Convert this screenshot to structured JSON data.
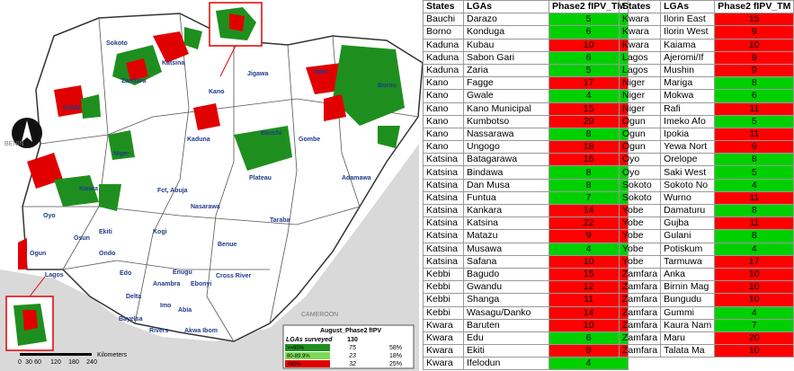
{
  "map": {
    "state_labels": [
      "Sokoto",
      "Katsina",
      "Zamfara",
      "Kano",
      "Jigawa",
      "Yobe",
      "Borno",
      "Kebbi",
      "Kaduna",
      "Bauchi",
      "Gombe",
      "Niger",
      "Plateau",
      "Adamawa",
      "Kwara",
      "Fct, Abuja",
      "Nasarawa",
      "Taraba",
      "Oyo",
      "Osun",
      "Ekiti",
      "Kogi",
      "Benue",
      "Ondo",
      "Ogun",
      "Lagos",
      "Edo",
      "Enugu",
      "Anambra",
      "Ebonyi",
      "Cross River",
      "Delta",
      "Imo",
      "Abia",
      "Bayelsa",
      "Rivers",
      "Akwa Ibom"
    ],
    "country_labels": [
      "BENIN",
      "CAMEROON"
    ],
    "scale_bar": {
      "unit": "Kilometers",
      "ticks": [
        0,
        30,
        60,
        120,
        180,
        240
      ]
    },
    "legend": {
      "title": "August_Phase2 fIPV",
      "total_label": "LGAs surveyed",
      "total": 130,
      "rows": [
        [
          ">=90%",
          75,
          "58%"
        ],
        [
          "80-89.9%",
          23,
          "18%"
        ],
        [
          "<80%",
          32,
          "25%"
        ]
      ],
      "colors": [
        "#1e8f1e",
        "#7ed957",
        "#e00000"
      ]
    }
  },
  "tables": [
    {
      "columns": [
        "States",
        "LGAs",
        "Phase2 fIPV_TM"
      ],
      "rows": [
        [
          "Bauchi",
          "Darazo",
          5
        ],
        [
          "Borno",
          "Konduga",
          6
        ],
        [
          "Kaduna",
          "Kubau",
          10
        ],
        [
          "Kaduna",
          "Sabon Gari",
          6
        ],
        [
          "Kaduna",
          "Zaria",
          5
        ],
        [
          "Kano",
          "Fagge",
          17
        ],
        [
          "Kano",
          "Gwale",
          4
        ],
        [
          "Kano",
          "Kano Municipal",
          15
        ],
        [
          "Kano",
          "Kumbotso",
          29
        ],
        [
          "Kano",
          "Nassarawa",
          8
        ],
        [
          "Kano",
          "Ungogo",
          18
        ],
        [
          "Katsina",
          "Batagarawa",
          16
        ],
        [
          "Katsina",
          "Bindawa",
          8
        ],
        [
          "Katsina",
          "Dan Musa",
          8
        ],
        [
          "Katsina",
          "Funtua",
          7
        ],
        [
          "Katsina",
          "Kankara",
          14
        ],
        [
          "Katsina",
          "Katsina",
          22
        ],
        [
          "Katsina",
          "Matazu",
          9
        ],
        [
          "Katsina",
          "Musawa",
          4
        ],
        [
          "Katsina",
          "Safana",
          10
        ],
        [
          "Kebbi",
          "Bagudo",
          15
        ],
        [
          "Kebbi",
          "Gwandu",
          12
        ],
        [
          "Kebbi",
          "Shanga",
          11
        ],
        [
          "Kebbi",
          "Wasagu/Danko",
          14
        ],
        [
          "Kwara",
          "Baruten",
          10
        ],
        [
          "Kwara",
          "Edu",
          6
        ],
        [
          "Kwara",
          "Ekiti",
          9
        ],
        [
          "Kwara",
          "Ifelodun",
          4
        ]
      ],
      "cell_colors": [
        "#00d000",
        "#00d000",
        "#ff0000",
        "#00d000",
        "#00d000",
        "#ff0000",
        "#00d000",
        "#ff0000",
        "#ff0000",
        "#00d000",
        "#ff0000",
        "#ff0000",
        "#00d000",
        "#00d000",
        "#00d000",
        "#ff0000",
        "#ff0000",
        "#ff0000",
        "#00d000",
        "#ff0000",
        "#ff0000",
        "#ff0000",
        "#ff0000",
        "#ff0000",
        "#ff0000",
        "#00d000",
        "#ff0000",
        "#00d000"
      ]
    },
    {
      "columns": [
        "States",
        "LGAs",
        "Phase2 fIPV_TM"
      ],
      "rows": [
        [
          "Kwara",
          "Ilorin East",
          15
        ],
        [
          "Kwara",
          "Ilorin West",
          9
        ],
        [
          "Kwara",
          "Kaiama",
          10
        ],
        [
          "Lagos",
          "Ajeromi/If",
          9
        ],
        [
          "Lagos",
          "Mushin",
          9
        ],
        [
          "Niger",
          "Mariga",
          8
        ],
        [
          "Niger",
          "Mokwa",
          6
        ],
        [
          "Niger",
          "Rafi",
          11
        ],
        [
          "Ogun",
          "Imeko Afo",
          5
        ],
        [
          "Ogun",
          "Ipokia",
          11
        ],
        [
          "Ogun",
          "Yewa Nort",
          9
        ],
        [
          "Oyo",
          "Orelope",
          8
        ],
        [
          "Oyo",
          "Saki West",
          5
        ],
        [
          "Sokoto",
          "Sokoto No",
          4
        ],
        [
          "Sokoto",
          "Wurno",
          11
        ],
        [
          "Yobe",
          "Damaturu",
          8
        ],
        [
          "Yobe",
          "Gujba",
          11
        ],
        [
          "Yobe",
          "Gulani",
          8
        ],
        [
          "Yobe",
          "Potiskum",
          4
        ],
        [
          "Yobe",
          "Tarmuwa",
          17
        ],
        [
          "Zamfara",
          "Anka",
          10
        ],
        [
          "Zamfara",
          "Birnin Mag",
          10
        ],
        [
          "Zamfara",
          "Bungudu",
          10
        ],
        [
          "Zamfara",
          "Gummi",
          4
        ],
        [
          "Zamfara",
          "Kaura Nam",
          7
        ],
        [
          "Zamfara",
          "Maru",
          20
        ],
        [
          "Zamfara",
          "Talata Ma",
          10
        ]
      ],
      "cell_colors": [
        "#ff0000",
        "#ff0000",
        "#ff0000",
        "#ff0000",
        "#ff0000",
        "#00d000",
        "#00d000",
        "#ff0000",
        "#00d000",
        "#ff0000",
        "#ff0000",
        "#00d000",
        "#00d000",
        "#00d000",
        "#ff0000",
        "#00d000",
        "#ff0000",
        "#00d000",
        "#00d000",
        "#ff0000",
        "#ff0000",
        "#ff0000",
        "#ff0000",
        "#00d000",
        "#00d000",
        "#ff0000",
        "#ff0000"
      ]
    }
  ]
}
